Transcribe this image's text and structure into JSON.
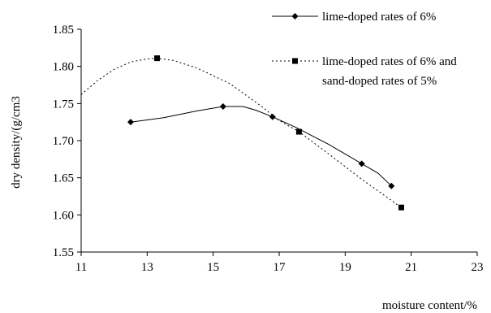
{
  "chart_data": {
    "type": "line",
    "title": "",
    "xlabel": "moisture content/%",
    "ylabel": "dry density/(g/cm3",
    "xlim": [
      11,
      23
    ],
    "ylim": [
      1.55,
      1.85
    ],
    "x_ticks": [
      "11",
      "13",
      "15",
      "17",
      "19",
      "21",
      "23"
    ],
    "y_ticks": [
      "1.55",
      "1.60",
      "1.65",
      "1.70",
      "1.75",
      "1.80",
      "1.85"
    ],
    "grid": false,
    "legend_position": "top-right",
    "series": [
      {
        "name": "lime-doped rates of 6%",
        "style": "solid",
        "marker": "diamond",
        "color": "#000000",
        "points": [
          [
            12.5,
            1.725
          ],
          [
            15.3,
            1.746
          ],
          [
            16.8,
            1.732
          ],
          [
            19.5,
            1.669
          ],
          [
            20.4,
            1.639
          ]
        ],
        "curve": [
          [
            12.5,
            1.725
          ],
          [
            13.5,
            1.731
          ],
          [
            14.5,
            1.74
          ],
          [
            15.3,
            1.746
          ],
          [
            15.9,
            1.746
          ],
          [
            16.3,
            1.741
          ],
          [
            16.8,
            1.732
          ],
          [
            17.5,
            1.718
          ],
          [
            18.5,
            1.695
          ],
          [
            19.5,
            1.669
          ],
          [
            20.0,
            1.656
          ],
          [
            20.4,
            1.639
          ]
        ]
      },
      {
        "name": "lime-doped rates of 6% and sand-doped rates of 5%",
        "legend_lines": [
          "lime-doped rates of 6% and",
          "sand-doped rates of 5%"
        ],
        "style": "dotted",
        "marker": "square",
        "color": "#000000",
        "points": [
          [
            13.3,
            1.811
          ],
          [
            17.6,
            1.712
          ],
          [
            20.7,
            1.61
          ]
        ],
        "curve": [
          [
            11.0,
            1.762
          ],
          [
            11.5,
            1.781
          ],
          [
            12.0,
            1.796
          ],
          [
            12.5,
            1.806
          ],
          [
            13.0,
            1.81
          ],
          [
            13.3,
            1.811
          ],
          [
            13.8,
            1.808
          ],
          [
            14.5,
            1.798
          ],
          [
            15.5,
            1.777
          ],
          [
            16.5,
            1.745
          ],
          [
            17.0,
            1.727
          ],
          [
            17.6,
            1.712
          ],
          [
            18.5,
            1.682
          ],
          [
            19.5,
            1.648
          ],
          [
            20.7,
            1.61
          ]
        ]
      }
    ]
  }
}
